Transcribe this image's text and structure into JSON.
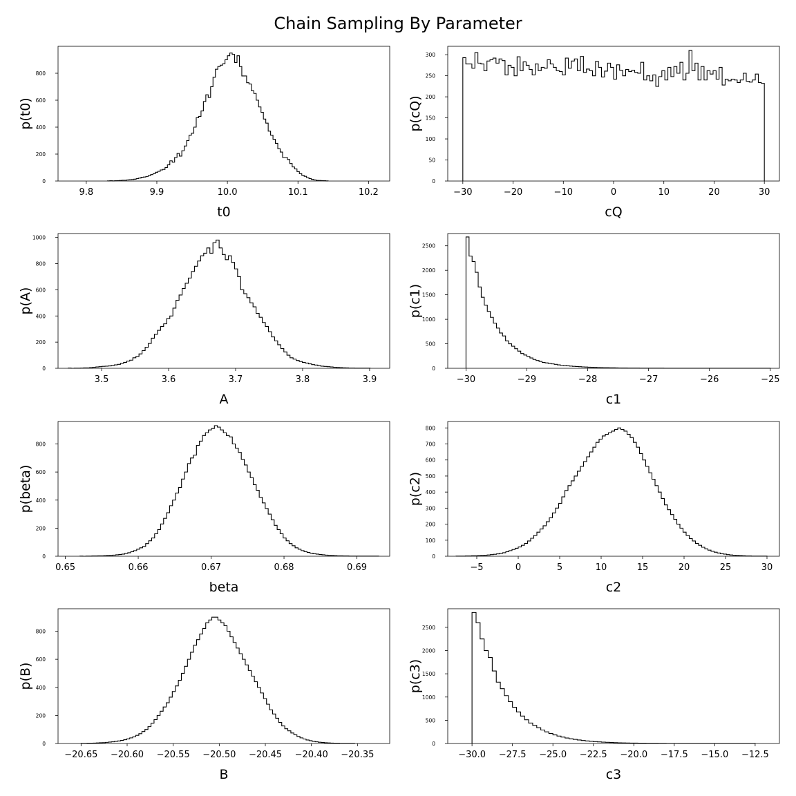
{
  "figure": {
    "title": "Chain Sampling By Parameter"
  },
  "chart_data": [
    {
      "type": "histogram",
      "xlabel": "t0",
      "ylabel": "p(t0)",
      "xlim": [
        9.76,
        10.23
      ],
      "ylim": [
        0,
        1000
      ],
      "xticks": [
        9.8,
        9.9,
        10.0,
        10.1,
        10.2
      ],
      "xtick_labels": [
        "9.8",
        "9.9",
        "10.0",
        "10.1",
        "10.2"
      ],
      "yticks": [
        0,
        200,
        400,
        600,
        800
      ],
      "ytick_labels": [
        "0",
        "200",
        "400",
        "600",
        "800"
      ],
      "bin_start": 9.83,
      "bin_width": 0.0034,
      "counts": [
        1,
        2,
        1,
        2,
        3,
        4,
        6,
        6,
        8,
        10,
        11,
        14,
        18,
        22,
        28,
        30,
        34,
        40,
        48,
        55,
        65,
        72,
        82,
        86,
        100,
        120,
        150,
        140,
        175,
        205,
        185,
        225,
        260,
        300,
        340,
        355,
        400,
        470,
        480,
        520,
        590,
        640,
        620,
        700,
        770,
        830,
        850,
        860,
        870,
        900,
        930,
        950,
        940,
        880,
        930,
        850,
        780,
        780,
        730,
        720,
        670,
        650,
        600,
        550,
        510,
        460,
        430,
        370,
        340,
        310,
        280,
        240,
        215,
        175,
        175,
        160,
        130,
        105,
        90,
        70,
        55,
        42,
        35,
        25,
        18,
        12,
        8,
        5,
        4,
        3,
        2,
        1
      ]
    },
    {
      "type": "histogram",
      "xlabel": "cQ",
      "ylabel": "p(cQ)",
      "xlim": [
        -33,
        33
      ],
      "ylim": [
        0,
        320
      ],
      "xticks": [
        -30,
        -20,
        -10,
        0,
        10,
        20,
        30
      ],
      "xtick_labels": [
        "−30",
        "−20",
        "−10",
        "0",
        "10",
        "20",
        "30"
      ],
      "yticks": [
        0,
        50,
        100,
        150,
        200,
        250,
        300
      ],
      "ytick_labels": [
        "0",
        "50",
        "100",
        "150",
        "200",
        "250",
        "300"
      ],
      "bin_start": -30,
      "bin_width": 0.6,
      "counts": [
        293,
        278,
        278,
        268,
        305,
        280,
        278,
        262,
        285,
        288,
        292,
        280,
        290,
        286,
        252,
        275,
        270,
        250,
        295,
        262,
        283,
        275,
        265,
        252,
        278,
        262,
        270,
        268,
        288,
        278,
        270,
        262,
        260,
        252,
        292,
        268,
        285,
        290,
        262,
        296,
        258,
        266,
        262,
        250,
        284,
        270,
        247,
        261,
        280,
        270,
        242,
        276,
        263,
        250,
        265,
        260,
        263,
        258,
        256,
        282,
        240,
        250,
        238,
        252,
        225,
        248,
        262,
        240,
        270,
        248,
        272,
        256,
        282,
        240,
        256,
        310,
        262,
        280,
        240,
        272,
        240,
        262,
        254,
        262,
        242,
        270,
        228,
        242,
        238,
        242,
        240,
        234,
        240,
        256,
        237,
        235,
        240,
        254,
        234,
        232
      ]
    },
    {
      "type": "histogram",
      "xlabel": "A",
      "ylabel": "p(A)",
      "xlim": [
        3.435,
        3.93
      ],
      "ylim": [
        0,
        1030
      ],
      "xticks": [
        3.5,
        3.6,
        3.7,
        3.8,
        3.9
      ],
      "xtick_labels": [
        "3.5",
        "3.6",
        "3.7",
        "3.8",
        "3.9"
      ],
      "yticks": [
        0,
        200,
        400,
        600,
        800,
        1000
      ],
      "ytick_labels": [
        "0",
        "200",
        "400",
        "600",
        "800",
        "1000"
      ],
      "bin_start": 3.45,
      "bin_width": 0.0046,
      "counts": [
        2,
        0,
        1,
        1,
        2,
        3,
        3,
        5,
        8,
        10,
        12,
        15,
        16,
        18,
        22,
        26,
        30,
        38,
        45,
        55,
        62,
        80,
        90,
        110,
        135,
        160,
        190,
        230,
        260,
        290,
        320,
        340,
        380,
        400,
        460,
        520,
        560,
        610,
        650,
        690,
        740,
        780,
        820,
        860,
        880,
        920,
        880,
        960,
        980,
        920,
        870,
        830,
        860,
        810,
        760,
        700,
        600,
        570,
        540,
        500,
        470,
        420,
        390,
        350,
        320,
        280,
        240,
        210,
        180,
        150,
        125,
        100,
        80,
        70,
        60,
        52,
        45,
        40,
        34,
        28,
        25,
        20,
        16,
        14,
        12,
        10,
        8,
        6,
        5,
        4,
        3,
        2,
        2,
        1,
        1,
        1,
        1,
        1
      ]
    },
    {
      "type": "histogram",
      "xlabel": "c1",
      "ylabel": "p(c1)",
      "xlim": [
        -30.3,
        -24.85
      ],
      "ylim": [
        0,
        2750
      ],
      "xticks": [
        -30,
        -29,
        -28,
        -27,
        -26,
        -25
      ],
      "xtick_labels": [
        "−30",
        "−29",
        "−28",
        "−27",
        "−26",
        "−25"
      ],
      "yticks": [
        0,
        500,
        1000,
        1500,
        2000,
        2500
      ],
      "ytick_labels": [
        "0",
        "500",
        "1000",
        "1500",
        "2000",
        "2500"
      ],
      "bin_start": -30,
      "bin_width": 0.05,
      "counts": [
        2680,
        2290,
        2180,
        1960,
        1660,
        1450,
        1290,
        1160,
        1040,
        920,
        820,
        720,
        660,
        560,
        500,
        450,
        400,
        350,
        300,
        270,
        240,
        210,
        180,
        160,
        140,
        120,
        110,
        100,
        90,
        80,
        70,
        60,
        55,
        50,
        45,
        40,
        36,
        32,
        28,
        25,
        22,
        20,
        18,
        16,
        14,
        12,
        11,
        10,
        9,
        8,
        7,
        6,
        6,
        5,
        5,
        4,
        4,
        3,
        3,
        3,
        2,
        2,
        2,
        2,
        2,
        1,
        1,
        1,
        1,
        1,
        1,
        1,
        1,
        1,
        1,
        1,
        1,
        1,
        1,
        1,
        1,
        1,
        1,
        1,
        1,
        1,
        1,
        1,
        1,
        1,
        1,
        1,
        1,
        1,
        1,
        1,
        1,
        1,
        1,
        1
      ]
    },
    {
      "type": "histogram",
      "xlabel": "beta",
      "ylabel": "p(beta)",
      "xlim": [
        0.649,
        0.6945
      ],
      "ylim": [
        0,
        960
      ],
      "xticks": [
        0.65,
        0.66,
        0.67,
        0.68,
        0.69
      ],
      "xtick_labels": [
        "0.65",
        "0.66",
        "0.67",
        "0.68",
        "0.69"
      ],
      "yticks": [
        0,
        200,
        400,
        600,
        800
      ],
      "ytick_labels": [
        "0",
        "200",
        "400",
        "600",
        "800"
      ],
      "bin_start": 0.652,
      "bin_width": 0.00041,
      "counts": [
        1,
        0,
        1,
        1,
        2,
        2,
        3,
        3,
        4,
        5,
        6,
        8,
        10,
        12,
        15,
        20,
        25,
        32,
        40,
        50,
        60,
        70,
        90,
        110,
        130,
        160,
        190,
        230,
        270,
        310,
        360,
        400,
        450,
        490,
        550,
        600,
        660,
        700,
        720,
        790,
        820,
        860,
        880,
        900,
        910,
        930,
        920,
        900,
        880,
        860,
        850,
        800,
        770,
        740,
        690,
        650,
        600,
        560,
        510,
        470,
        420,
        380,
        340,
        300,
        260,
        220,
        190,
        160,
        130,
        110,
        90,
        75,
        60,
        50,
        40,
        33,
        27,
        22,
        18,
        15,
        12,
        10,
        8,
        6,
        5,
        4,
        3,
        3,
        2,
        2,
        1,
        1,
        1,
        1,
        1,
        1,
        1,
        1,
        1,
        1
      ]
    },
    {
      "type": "histogram",
      "xlabel": "c2",
      "ylabel": "p(c2)",
      "xlim": [
        -8.5,
        31.5
      ],
      "ylim": [
        0,
        840
      ],
      "xticks": [
        -5,
        0,
        5,
        10,
        15,
        20,
        25,
        30
      ],
      "xtick_labels": [
        "−5",
        "0",
        "5",
        "10",
        "15",
        "20",
        "25",
        "30"
      ],
      "yticks": [
        0,
        100,
        200,
        300,
        400,
        500,
        600,
        700,
        800
      ],
      "ytick_labels": [
        "0",
        "100",
        "200",
        "300",
        "400",
        "500",
        "600",
        "700",
        "800"
      ],
      "bin_start": -7.5,
      "bin_width": 0.375,
      "counts": [
        1,
        1,
        1,
        2,
        2,
        3,
        3,
        4,
        5,
        6,
        8,
        10,
        12,
        15,
        18,
        22,
        28,
        35,
        42,
        50,
        58,
        68,
        80,
        95,
        112,
        130,
        150,
        170,
        190,
        215,
        240,
        270,
        300,
        330,
        370,
        410,
        440,
        470,
        500,
        530,
        560,
        590,
        620,
        650,
        680,
        710,
        730,
        750,
        760,
        770,
        780,
        790,
        800,
        790,
        780,
        760,
        740,
        710,
        680,
        640,
        600,
        560,
        520,
        480,
        440,
        400,
        360,
        320,
        290,
        260,
        230,
        200,
        175,
        150,
        130,
        110,
        95,
        80,
        68,
        56,
        46,
        38,
        31,
        25,
        20,
        16,
        13,
        10,
        8,
        6,
        5,
        4,
        3,
        2,
        2,
        1,
        1,
        1,
        1,
        1
      ]
    },
    {
      "type": "histogram",
      "xlabel": "B",
      "ylabel": "p(B)",
      "xlim": [
        -20.675,
        -20.315
      ],
      "ylim": [
        0,
        960
      ],
      "xticks": [
        -20.65,
        -20.6,
        -20.55,
        -20.5,
        -20.45,
        -20.4,
        -20.35
      ],
      "xtick_labels": [
        "−20.65",
        "−20.60",
        "−20.55",
        "−20.50",
        "−20.45",
        "−20.40",
        "−20.35"
      ],
      "yticks": [
        0,
        200,
        400,
        600,
        800
      ],
      "ytick_labels": [
        "0",
        "200",
        "400",
        "600",
        "800"
      ],
      "bin_start": -20.65,
      "bin_width": 0.0033,
      "counts": [
        1,
        1,
        2,
        2,
        3,
        4,
        5,
        6,
        8,
        10,
        12,
        15,
        18,
        22,
        27,
        33,
        40,
        48,
        58,
        70,
        85,
        100,
        120,
        145,
        170,
        200,
        230,
        260,
        290,
        330,
        370,
        410,
        450,
        500,
        550,
        600,
        650,
        700,
        740,
        780,
        820,
        860,
        880,
        900,
        900,
        880,
        860,
        840,
        800,
        760,
        720,
        680,
        640,
        600,
        560,
        520,
        480,
        440,
        400,
        360,
        320,
        280,
        240,
        210,
        180,
        150,
        125,
        105,
        90,
        75,
        62,
        50,
        40,
        32,
        25,
        20,
        15,
        12,
        9,
        7,
        5,
        4,
        3,
        2,
        2,
        1,
        1,
        1,
        1,
        1
      ]
    },
    {
      "type": "histogram",
      "xlabel": "c3",
      "ylabel": "p(c3)",
      "xlim": [
        -31.5,
        -11
      ],
      "ylim": [
        0,
        2900
      ],
      "xticks": [
        -30,
        -27.5,
        -25,
        -22.5,
        -20,
        -17.5,
        -15,
        -12.5
      ],
      "xtick_labels": [
        "−30.0",
        "−27.5",
        "−25.0",
        "−22.5",
        "−20.0",
        "−17.5",
        "−15.0",
        "−12.5"
      ],
      "yticks": [
        0,
        500,
        1000,
        1500,
        2000,
        2500
      ],
      "ytick_labels": [
        "0",
        "500",
        "1000",
        "1500",
        "2000",
        "2500"
      ],
      "bin_start": -30,
      "bin_width": 0.25,
      "counts": [
        2820,
        2600,
        2250,
        2000,
        1850,
        1560,
        1320,
        1180,
        1030,
        900,
        780,
        680,
        590,
        510,
        440,
        390,
        340,
        290,
        250,
        215,
        185,
        160,
        138,
        118,
        102,
        88,
        75,
        64,
        55,
        47,
        40,
        34,
        29,
        25,
        21,
        18,
        15,
        13,
        11,
        9,
        8,
        7,
        6,
        5,
        4,
        4,
        3,
        3,
        2,
        2,
        2,
        1,
        1,
        1,
        1,
        1,
        1,
        1,
        1,
        1,
        1,
        1,
        1,
        1,
        1,
        1,
        1,
        1,
        1,
        1
      ]
    }
  ]
}
